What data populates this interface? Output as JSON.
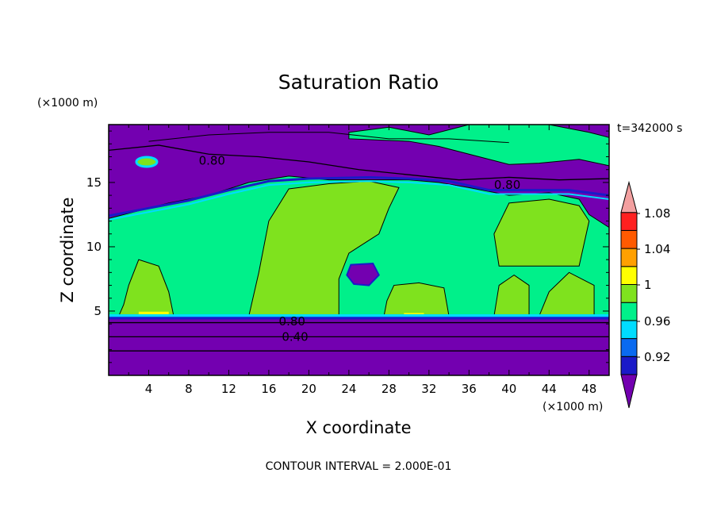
{
  "chart_data": {
    "type": "heatmap",
    "title": "Saturation Ratio",
    "xlabel": "X coordinate",
    "ylabel": "Z coordinate",
    "x_unit": "(×1000 m)",
    "y_unit": "(×1000 m)",
    "time_label": "t=342000 s",
    "footer": "CONTOUR INTERVAL = 2.000E-01",
    "xlim": [
      0,
      50
    ],
    "ylim": [
      0,
      19.5
    ],
    "x_ticks": [
      "4",
      "8",
      "12",
      "16",
      "20",
      "24",
      "28",
      "32",
      "36",
      "40",
      "44",
      "48"
    ],
    "y_ticks": [
      "5",
      "10",
      "15"
    ],
    "contour_labels": [
      {
        "text": "0.80",
        "x": 9,
        "y": 16.7
      },
      {
        "text": "0.80",
        "x": 38.5,
        "y": 14.8
      },
      {
        "text": "0.80",
        "x": 17,
        "y": 4.2
      },
      {
        "text": "0.40",
        "x": 17.3,
        "y": 3.0
      }
    ],
    "colorbar": {
      "labels": [
        "1.08",
        "1.04",
        "1",
        "0.96",
        "0.92"
      ],
      "colors": [
        "#7300b0",
        "#1a1ac8",
        "#0a6af0",
        "#00dcff",
        "#00f08a",
        "#7fe21e",
        "#ffff00",
        "#ffa000",
        "#ff5a00",
        "#ff2020",
        "#f3a0a0"
      ]
    },
    "regions": {
      "below_0_90": "#7300b0",
      "r_0_92": "#1a1ac8",
      "r_0_96": "#00dcff",
      "r_0_98_1": "#00f08a",
      "r_1_1_02": "#7fe21e",
      "r_1_02_1_04": "#ffff00"
    }
  }
}
